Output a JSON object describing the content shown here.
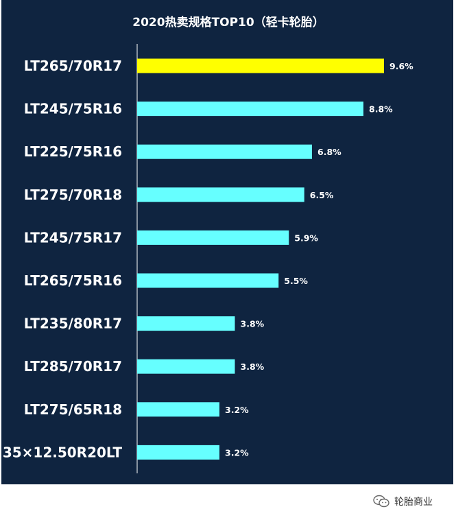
{
  "chart_data": {
    "type": "bar",
    "orientation": "horizontal",
    "title": "2020热卖规格TOP10（轻卡轮胎）",
    "categories": [
      "LT265/70R17",
      "LT245/75R16",
      "LT225/75R16",
      "LT275/70R18",
      "LT245/75R17",
      "LT265/75R16",
      "LT235/80R17",
      "LT285/70R17",
      "LT275/65R18",
      "35×12.50R20LT"
    ],
    "values": [
      9.6,
      8.8,
      6.8,
      6.5,
      5.9,
      5.5,
      3.8,
      3.8,
      3.2,
      3.2
    ],
    "value_labels": [
      "9.6%",
      "8.8%",
      "6.8%",
      "6.5%",
      "5.9%",
      "5.5%",
      "3.8%",
      "3.8%",
      "3.2%",
      "3.2%"
    ],
    "unit": "%",
    "highlight_index": 0,
    "colors": {
      "background": "#0f2440",
      "bar": "#66ffff",
      "highlight": "#ffff00",
      "text": "#ffffff",
      "axis": "#ffffff"
    },
    "grid": false,
    "legend": "none"
  },
  "watermark": {
    "text": "轮胎商业",
    "icon": "wechat-icon"
  }
}
